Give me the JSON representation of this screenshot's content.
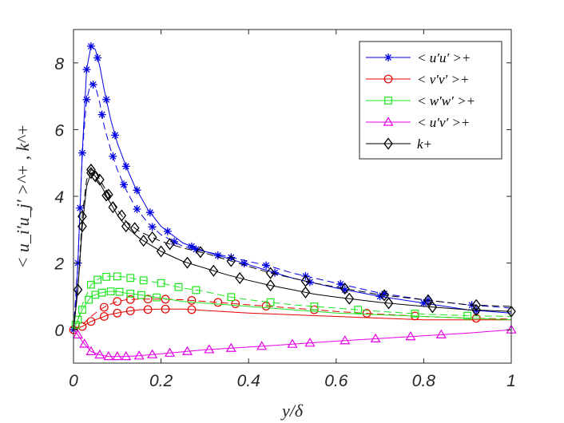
{
  "chart_data": {
    "type": "line",
    "title": "",
    "xlabel": "y/δ",
    "ylabel": "< u_i′u_j′ >^+ , k^+",
    "xlim": [
      0,
      1
    ],
    "ylim": [
      -1,
      9
    ],
    "xticks": [
      "0",
      "0.2",
      "0.4",
      "0.6",
      "0.8",
      "1"
    ],
    "yticks": [
      "0",
      "2",
      "4",
      "6",
      "8"
    ],
    "legend_position": "top-right",
    "legend": [
      {
        "label": "< u′u′ >+",
        "color": "#0000e6",
        "marker": "star"
      },
      {
        "label": "< v′v′ >+",
        "color": "#e60000",
        "marker": "circle"
      },
      {
        "label": "< w′w′ >+",
        "color": "#1ee61e",
        "marker": "square"
      },
      {
        "label": "< u′v′ >+",
        "color": "#e600e6",
        "marker": "triangle"
      },
      {
        "label": "k+",
        "color": "#000000",
        "marker": "diamond"
      }
    ],
    "series": [
      {
        "name": "uu solid",
        "color": "#0000e6",
        "marker": "star",
        "dash": "solid",
        "x": [
          0,
          0.005,
          0.01,
          0.02,
          0.03,
          0.04,
          0.05,
          0.06,
          0.07,
          0.085,
          0.1,
          0.12,
          0.14,
          0.17,
          0.2,
          0.25,
          0.3,
          0.35,
          0.4,
          0.45,
          0.5,
          0.55,
          0.6,
          0.7,
          0.8,
          0.9,
          1.0
        ],
        "y": [
          0,
          0.6,
          2.0,
          5.3,
          7.8,
          8.5,
          8.4,
          7.9,
          7.2,
          6.3,
          5.6,
          4.9,
          4.3,
          3.6,
          3.1,
          2.6,
          2.35,
          2.15,
          1.95,
          1.75,
          1.55,
          1.4,
          1.25,
          1.0,
          0.8,
          0.6,
          0.5
        ],
        "markers_x": [
          0,
          0.01,
          0.02,
          0.03,
          0.04,
          0.055,
          0.075,
          0.095,
          0.12,
          0.145,
          0.175,
          0.215,
          0.27,
          0.33,
          0.39,
          0.46,
          0.54,
          0.62,
          0.7,
          0.8,
          0.92
        ]
      },
      {
        "name": "uu dashed",
        "color": "#0000e6",
        "marker": "star",
        "dash": "dashed",
        "x": [
          0,
          0.01,
          0.02,
          0.03,
          0.04,
          0.05,
          0.06,
          0.07,
          0.085,
          0.1,
          0.12,
          0.14,
          0.17,
          0.2,
          0.25,
          0.3,
          0.35,
          0.4,
          0.45,
          0.5,
          0.55,
          0.6,
          0.7,
          0.8,
          0.9,
          1.0
        ],
        "y": [
          0,
          2.0,
          5.3,
          6.9,
          7.4,
          7.3,
          6.8,
          6.1,
          5.4,
          4.8,
          4.2,
          3.7,
          3.2,
          2.85,
          2.5,
          2.35,
          2.2,
          2.05,
          1.9,
          1.7,
          1.55,
          1.4,
          1.1,
          0.9,
          0.75,
          0.65
        ],
        "markers_x": [
          0.015,
          0.03,
          0.045,
          0.065,
          0.09,
          0.115,
          0.145,
          0.18,
          0.23,
          0.28,
          0.36,
          0.44,
          0.53,
          0.61,
          0.71,
          0.81,
          0.91
        ]
      },
      {
        "name": "vv solid",
        "color": "#e60000",
        "marker": "circle",
        "dash": "solid",
        "x": [
          0,
          0.02,
          0.04,
          0.06,
          0.08,
          0.1,
          0.12,
          0.15,
          0.2,
          0.25,
          0.3,
          0.4,
          0.5,
          0.6,
          0.7,
          0.8,
          0.9,
          1.0
        ],
        "y": [
          0,
          0.1,
          0.25,
          0.35,
          0.45,
          0.5,
          0.55,
          0.6,
          0.62,
          0.62,
          0.58,
          0.5,
          0.45,
          0.4,
          0.35,
          0.3,
          0.3,
          0.3
        ],
        "markers_x": [
          0,
          0.02,
          0.04,
          0.07,
          0.1,
          0.13,
          0.17,
          0.21,
          0.27
        ]
      },
      {
        "name": "vv dashed",
        "color": "#e60000",
        "marker": "circle",
        "dash": "dashed",
        "x": [
          0,
          0.02,
          0.04,
          0.06,
          0.08,
          0.1,
          0.12,
          0.15,
          0.2,
          0.25,
          0.3,
          0.4,
          0.5,
          0.6,
          0.7,
          0.8,
          0.9,
          1.0
        ],
        "y": [
          0,
          0.15,
          0.4,
          0.6,
          0.75,
          0.85,
          0.9,
          0.92,
          0.92,
          0.9,
          0.85,
          0.75,
          0.65,
          0.55,
          0.47,
          0.4,
          0.35,
          0.32
        ],
        "markers_x": [
          0.07,
          0.1,
          0.13,
          0.17,
          0.21,
          0.27,
          0.33,
          0.37,
          0.44,
          0.55,
          0.67,
          0.78,
          0.92
        ]
      },
      {
        "name": "ww solid",
        "color": "#1ee61e",
        "marker": "square",
        "dash": "solid",
        "x": [
          0,
          0.01,
          0.02,
          0.04,
          0.06,
          0.08,
          0.1,
          0.12,
          0.15,
          0.2,
          0.25,
          0.3,
          0.4,
          0.5,
          0.6,
          0.7,
          0.8,
          0.9,
          1.0
        ],
        "y": [
          0,
          0.3,
          0.6,
          1.0,
          1.1,
          1.15,
          1.15,
          1.1,
          1.05,
          0.95,
          0.85,
          0.8,
          0.7,
          0.6,
          0.5,
          0.45,
          0.4,
          0.35,
          0.3
        ],
        "markers_x": [
          0.005,
          0.02,
          0.035,
          0.05,
          0.065,
          0.085,
          0.105,
          0.13,
          0.155,
          0.19
        ]
      },
      {
        "name": "ww dashed",
        "color": "#1ee61e",
        "marker": "square",
        "dash": "dashed",
        "x": [
          0,
          0.01,
          0.02,
          0.04,
          0.06,
          0.08,
          0.1,
          0.12,
          0.15,
          0.2,
          0.25,
          0.3,
          0.35,
          0.4,
          0.5,
          0.6,
          0.7,
          0.8,
          0.9,
          1.0
        ],
        "y": [
          0,
          0.3,
          0.75,
          1.35,
          1.55,
          1.6,
          1.6,
          1.58,
          1.5,
          1.4,
          1.25,
          1.15,
          1.0,
          0.9,
          0.75,
          0.65,
          0.55,
          0.47,
          0.42,
          0.4
        ],
        "markers_x": [
          0.01,
          0.04,
          0.055,
          0.075,
          0.1,
          0.13,
          0.16,
          0.2,
          0.24,
          0.28,
          0.36,
          0.45,
          0.55,
          0.65,
          0.78,
          0.9
        ]
      },
      {
        "name": "uv solid",
        "color": "#e600e6",
        "marker": "triangle",
        "dash": "solid",
        "x": [
          0,
          0.01,
          0.02,
          0.04,
          0.06,
          0.08,
          0.1,
          0.12,
          0.15,
          0.2,
          0.3,
          0.4,
          0.5,
          0.6,
          0.7,
          0.8,
          0.9,
          1.0
        ],
        "y": [
          0,
          -0.15,
          -0.35,
          -0.65,
          -0.75,
          -0.8,
          -0.8,
          -0.8,
          -0.78,
          -0.72,
          -0.6,
          -0.52,
          -0.43,
          -0.34,
          -0.26,
          -0.18,
          -0.1,
          0.0
        ],
        "markers_x": [
          0.01,
          0.025,
          0.04,
          0.06,
          0.08,
          0.1,
          0.12,
          0.15,
          0.18,
          0.22,
          0.26,
          0.31,
          0.36,
          0.43,
          0.5,
          0.54,
          0.62,
          0.69,
          0.77,
          0.84,
          1.0
        ]
      },
      {
        "name": "k solid",
        "color": "#000000",
        "marker": "diamond",
        "dash": "solid",
        "x": [
          0,
          0.01,
          0.02,
          0.03,
          0.04,
          0.05,
          0.06,
          0.07,
          0.08,
          0.1,
          0.12,
          0.15,
          0.2,
          0.25,
          0.3,
          0.35,
          0.4,
          0.45,
          0.5,
          0.55,
          0.6,
          0.7,
          0.8,
          0.9,
          1.0
        ],
        "y": [
          0,
          1.2,
          3.1,
          4.3,
          4.7,
          4.6,
          4.4,
          4.15,
          3.9,
          3.45,
          3.1,
          2.75,
          2.35,
          2.05,
          1.85,
          1.65,
          1.48,
          1.33,
          1.2,
          1.07,
          0.98,
          0.82,
          0.7,
          0.6,
          0.55
        ],
        "markers_x": [
          0.01,
          0.02,
          0.04,
          0.05,
          0.075,
          0.09,
          0.12,
          0.16,
          0.2,
          0.26,
          0.32,
          0.38,
          0.45,
          0.53,
          0.63,
          0.72,
          0.82,
          0.92,
          1.0
        ]
      },
      {
        "name": "k dashed",
        "color": "#000000",
        "marker": "diamond",
        "dash": "dashed",
        "x": [
          0,
          0.01,
          0.02,
          0.03,
          0.04,
          0.05,
          0.06,
          0.08,
          0.1,
          0.12,
          0.15,
          0.2,
          0.25,
          0.3,
          0.35,
          0.4,
          0.45,
          0.5,
          0.55,
          0.6,
          0.7,
          0.8,
          0.9,
          1.0
        ],
        "y": [
          0,
          1.2,
          3.4,
          4.5,
          4.8,
          4.75,
          4.5,
          4.05,
          3.6,
          3.25,
          2.95,
          2.65,
          2.45,
          2.3,
          2.1,
          1.9,
          1.7,
          1.55,
          1.4,
          1.28,
          1.05,
          0.9,
          0.75,
          0.7
        ],
        "markers_x": [
          0.02,
          0.04,
          0.06,
          0.08,
          0.11,
          0.14,
          0.18,
          0.22,
          0.29,
          0.36,
          0.45,
          0.53,
          0.62,
          0.71,
          0.81,
          0.92
        ]
      }
    ]
  }
}
